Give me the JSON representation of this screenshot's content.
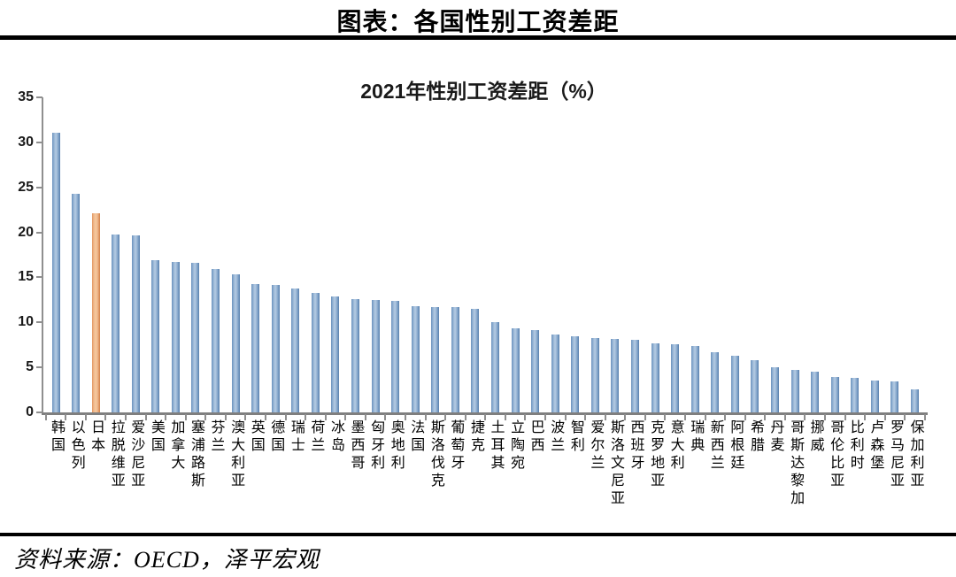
{
  "header": {
    "title": "图表：各国性别工资差距"
  },
  "footer": {
    "source": "资料来源：OECD，泽平宏观"
  },
  "colors": {
    "bar_blue": "#6f94bf",
    "bar_highlight_orange": "#e09a66",
    "axis_gray": "#8f8f8f",
    "text_black": "#1a1a1a"
  },
  "chart_data": {
    "type": "bar",
    "title": "2021年性别工资差距（%）",
    "xlabel": "",
    "ylabel": "",
    "ylim": [
      0,
      35
    ],
    "yticks": [
      0,
      5,
      10,
      15,
      20,
      25,
      30,
      35
    ],
    "grid": false,
    "legend_position": "none",
    "highlight_category": "日本",
    "highlight_index": 2,
    "categories": [
      "韩国",
      "以色列",
      "日本",
      "拉脱维亚",
      "爱沙尼亚",
      "美国",
      "加拿大",
      "塞浦路斯",
      "芬兰",
      "澳大利亚",
      "英国",
      "德国",
      "瑞士",
      "荷兰",
      "冰岛",
      "墨西哥",
      "匈牙利",
      "奥地利",
      "法国",
      "斯洛伐克",
      "葡萄牙",
      "捷克",
      "土耳其",
      "立陶宛",
      "巴西",
      "波兰",
      "智利",
      "爱尔兰",
      "斯洛文尼亚",
      "西班牙",
      "克罗地亚",
      "意大利",
      "瑞典",
      "新西兰",
      "阿根廷",
      "希腊",
      "丹麦",
      "哥斯达黎加",
      "挪威",
      "哥伦比亚",
      "比利时",
      "卢森堡",
      "罗马尼亚",
      "保加利亚"
    ],
    "values": [
      31.1,
      24.3,
      22.1,
      19.8,
      19.7,
      16.9,
      16.7,
      16.6,
      15.9,
      15.3,
      14.3,
      14.2,
      13.8,
      13.3,
      12.9,
      12.6,
      12.5,
      12.4,
      11.8,
      11.7,
      11.7,
      11.5,
      10.0,
      9.3,
      9.1,
      8.7,
      8.5,
      8.3,
      8.2,
      8.1,
      7.7,
      7.6,
      7.4,
      6.7,
      6.3,
      5.8,
      5.0,
      4.7,
      4.5,
      3.9,
      3.8,
      3.5,
      3.4,
      2.6
    ]
  }
}
